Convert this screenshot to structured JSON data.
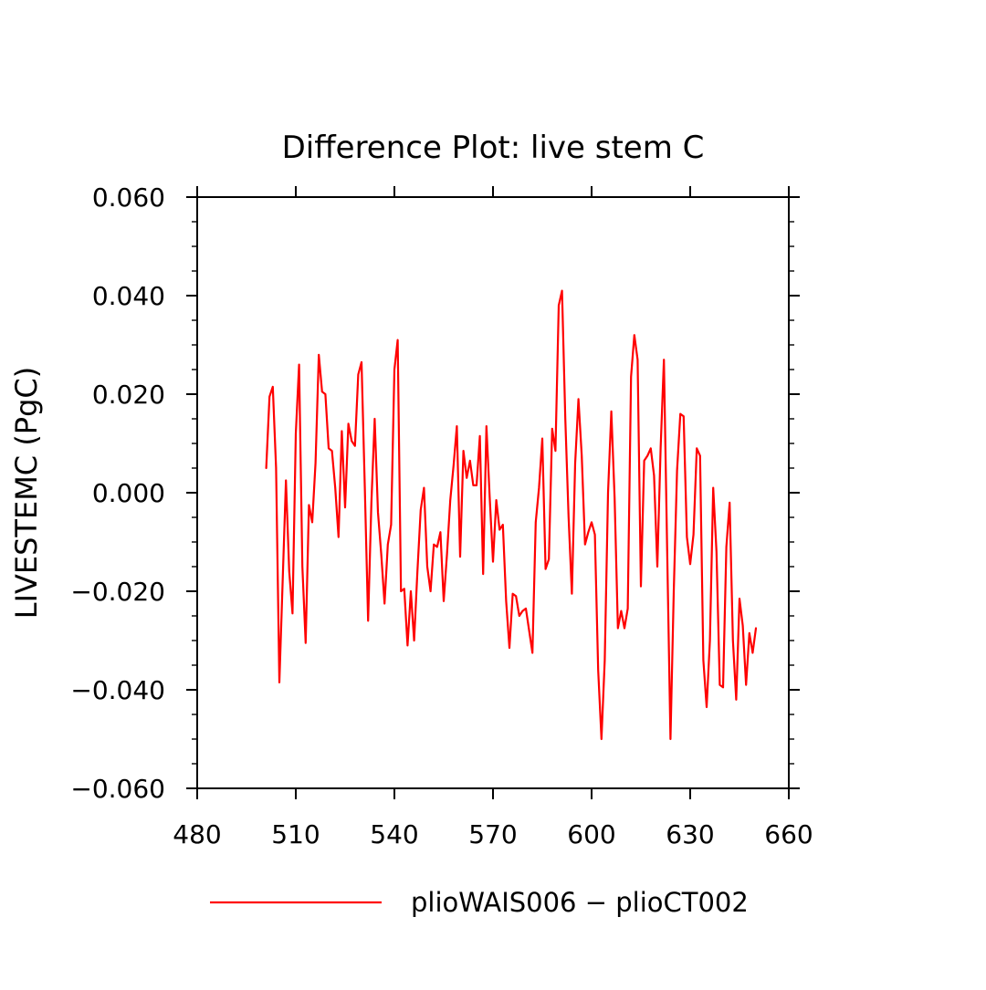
{
  "chart_data": {
    "type": "line",
    "title": "Difference Plot: live stem C",
    "xlabel": "",
    "ylabel": "LIVESTEMC  (PgC)",
    "xlim": [
      480,
      660
    ],
    "ylim": [
      -0.06,
      0.06
    ],
    "x_ticks": [
      480,
      510,
      540,
      570,
      600,
      630,
      660
    ],
    "x_tick_labels": [
      "480",
      "510",
      "540",
      "570",
      "600",
      "630",
      "660"
    ],
    "y_ticks": [
      0.06,
      0.04,
      0.02,
      0.0,
      -0.02,
      -0.04,
      -0.06
    ],
    "y_tick_labels": [
      "0.060",
      "0.040",
      "0.020",
      "0.000",
      "−0.020",
      "−0.040",
      "−0.060"
    ],
    "grid": false,
    "legend_position": "bottom-center",
    "series": [
      {
        "name": "plioWAIS006 − plioCT002",
        "color": "#ff0000",
        "x": [
          501,
          502,
          503,
          504,
          505,
          506,
          507,
          508,
          509,
          510,
          511,
          512,
          513,
          514,
          515,
          516,
          517,
          518,
          519,
          520,
          521,
          522,
          523,
          524,
          525,
          526,
          527,
          528,
          529,
          530,
          531,
          532,
          533,
          534,
          535,
          536,
          537,
          538,
          539,
          540,
          541,
          542,
          543,
          544,
          545,
          546,
          547,
          548,
          549,
          550,
          551,
          552,
          553,
          554,
          555,
          556,
          557,
          558,
          559,
          560,
          561,
          562,
          563,
          564,
          565,
          566,
          567,
          568,
          569,
          570,
          571,
          572,
          573,
          574,
          575,
          576,
          577,
          578,
          579,
          580,
          581,
          582,
          583,
          584,
          585,
          586,
          587,
          588,
          589,
          590,
          591,
          592,
          593,
          594,
          595,
          596,
          597,
          598,
          599,
          600,
          601,
          602,
          603,
          604,
          605,
          606,
          607,
          608,
          609,
          610,
          611,
          612,
          613,
          614,
          615,
          616,
          617,
          618,
          619,
          620,
          621,
          622,
          623,
          624,
          625,
          626,
          627,
          628,
          629,
          630,
          631,
          632,
          633,
          634,
          635,
          636,
          637,
          638,
          639,
          640,
          641,
          642,
          643,
          644,
          645,
          646,
          647,
          648,
          649,
          650
        ],
        "y": [
          0.005,
          0.0195,
          0.0215,
          0.005,
          -0.0385,
          -0.018,
          0.0025,
          -0.016,
          -0.0245,
          0.012,
          0.026,
          -0.015,
          -0.0305,
          -0.0025,
          -0.006,
          0.006,
          0.028,
          0.0205,
          0.02,
          0.009,
          0.0085,
          0.001,
          -0.009,
          0.0125,
          -0.003,
          0.014,
          0.0105,
          0.0095,
          0.024,
          0.0265,
          0.001,
          -0.026,
          -0.002,
          0.015,
          -0.004,
          -0.0125,
          -0.0225,
          -0.0105,
          -0.0065,
          0.025,
          0.031,
          -0.02,
          -0.0195,
          -0.031,
          -0.02,
          -0.03,
          -0.016,
          -0.0035,
          0.001,
          -0.015,
          -0.02,
          -0.0105,
          -0.011,
          -0.008,
          -0.022,
          -0.0125,
          -0.0015,
          0.0055,
          0.0135,
          -0.013,
          0.0085,
          0.003,
          0.0065,
          0.0015,
          0.0015,
          0.0115,
          -0.0165,
          0.0135,
          -0.001,
          -0.014,
          -0.0015,
          -0.0075,
          -0.0065,
          -0.022,
          -0.0315,
          -0.0205,
          -0.021,
          -0.025,
          -0.024,
          -0.0235,
          -0.028,
          -0.0325,
          -0.006,
          0.001,
          0.011,
          -0.0155,
          -0.0135,
          0.013,
          0.0085,
          0.038,
          0.041,
          0.015,
          -0.005,
          -0.0205,
          0.006,
          0.019,
          0.0075,
          -0.0105,
          -0.008,
          -0.006,
          -0.0085,
          -0.036,
          -0.05,
          -0.034,
          0.0,
          0.0165,
          -0.001,
          -0.0275,
          -0.024,
          -0.0275,
          -0.0235,
          0.0235,
          0.032,
          0.027,
          -0.019,
          0.0065,
          0.0075,
          0.009,
          0.0035,
          -0.015,
          0.009,
          0.027,
          -0.012,
          -0.05,
          -0.02,
          0.0045,
          0.016,
          0.0155,
          -0.009,
          -0.0145,
          -0.0085,
          0.009,
          0.0075,
          -0.034,
          -0.0435,
          -0.03,
          0.001,
          -0.012,
          -0.039,
          -0.0395,
          -0.011,
          -0.002,
          -0.03,
          -0.042,
          -0.0215,
          -0.027,
          -0.039,
          -0.0285,
          -0.0325,
          -0.0275
        ]
      }
    ]
  }
}
